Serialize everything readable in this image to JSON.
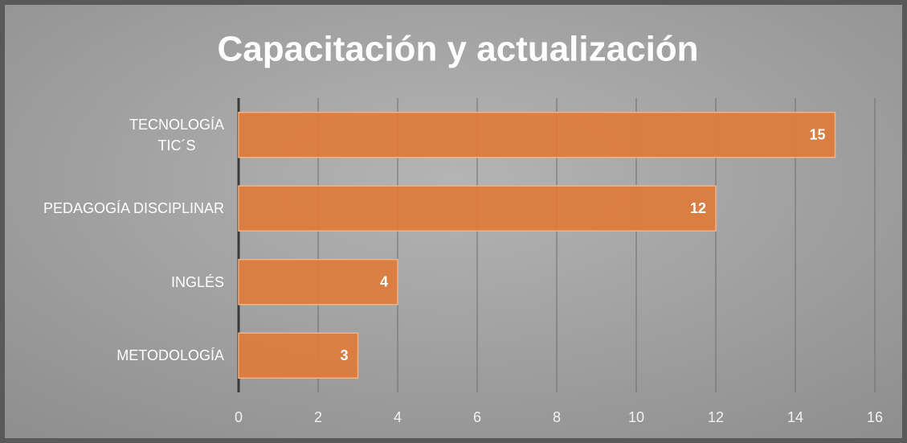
{
  "chart_data": {
    "type": "barh",
    "title": "Capacitación y actualización",
    "categories": [
      "TECNOLOGÍA\nTIC´S",
      "PEDAGOGÍA DISCIPLINAR",
      "INGLÉS",
      "METODOLOGÍA"
    ],
    "values": [
      15,
      12,
      4,
      3
    ],
    "color": "#e07b39",
    "xlim": [
      0,
      16
    ],
    "xticks": [
      0,
      2,
      4,
      6,
      8,
      10,
      12,
      14,
      16
    ],
    "grid": true
  }
}
